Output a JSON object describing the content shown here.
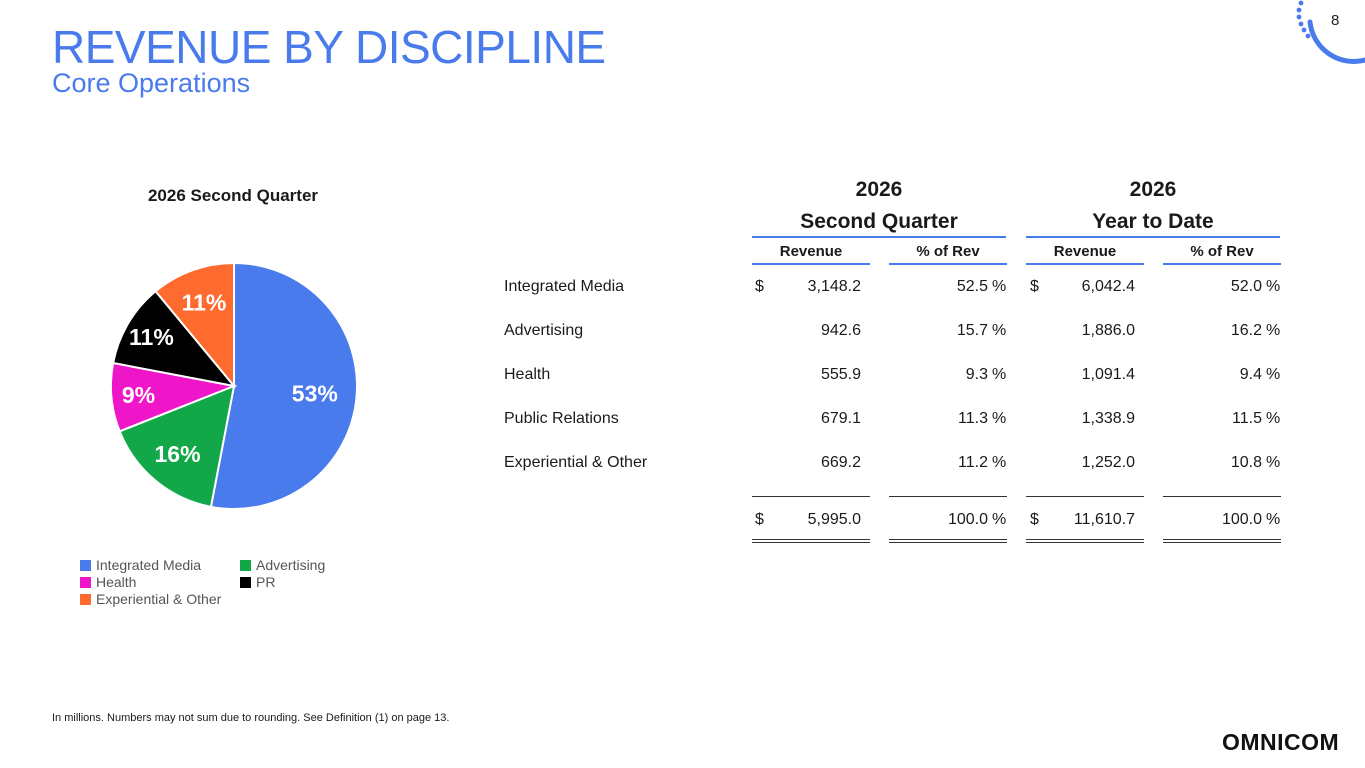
{
  "header": {
    "title": "REVENUE BY DISCIPLINE",
    "subtitle": "Core Operations",
    "page_number": "8"
  },
  "colors": {
    "accent": "#4a7bec",
    "integrated_media": "#4a7bec",
    "advertising": "#12a84a",
    "health": "#ef15c8",
    "pr": "#000000",
    "experiential": "#ff6a2e"
  },
  "chart_data": {
    "type": "pie",
    "title": "2026 Second Quarter",
    "slices": [
      {
        "label": "Integrated Media",
        "value": 53,
        "display": "53%",
        "color": "#4a7bec"
      },
      {
        "label": "Advertising",
        "value": 16,
        "display": "16%",
        "color": "#12a84a"
      },
      {
        "label": "Health",
        "value": 9,
        "display": "9%",
        "color": "#ef15c8"
      },
      {
        "label": "PR",
        "value": 11,
        "display": "11%",
        "color": "#000000"
      },
      {
        "label": "Experiential & Other",
        "value": 11,
        "display": "11%",
        "color": "#ff6a2e"
      }
    ],
    "legend": [
      "Integrated Media",
      "Advertising",
      "Health",
      "PR",
      "Experiential & Other"
    ],
    "legend_placement": "bottom"
  },
  "table": {
    "groups": [
      {
        "year": "2026",
        "period": "Second Quarter"
      },
      {
        "year": "2026",
        "period": "Year to Date"
      }
    ],
    "columns": [
      "Revenue",
      "% of Rev",
      "Revenue",
      "% of Rev"
    ],
    "rows": [
      {
        "label": "Integrated Media",
        "q_rev": "3,148.2",
        "q_pct": "52.5",
        "ytd_rev": "6,042.4",
        "ytd_pct": "52.0"
      },
      {
        "label": "Advertising",
        "q_rev": "942.6",
        "q_pct": "15.7",
        "ytd_rev": "1,886.0",
        "ytd_pct": "16.2"
      },
      {
        "label": "Health",
        "q_rev": "555.9",
        "q_pct": "9.3",
        "ytd_rev": "1,091.4",
        "ytd_pct": "9.4"
      },
      {
        "label": "Public Relations",
        "q_rev": "679.1",
        "q_pct": "11.3",
        "ytd_rev": "1,338.9",
        "ytd_pct": "11.5"
      },
      {
        "label": "Experiential & Other",
        "q_rev": "669.2",
        "q_pct": "11.2",
        "ytd_rev": "1,252.0",
        "ytd_pct": "10.8"
      }
    ],
    "total": {
      "q_rev": "5,995.0",
      "q_pct": "100.0",
      "ytd_rev": "11,610.7",
      "ytd_pct": "100.0"
    },
    "currency_symbol": "$",
    "percent_symbol": "%"
  },
  "footnote": "In millions. Numbers may not sum due to rounding.  See Definition (1) on page 13.",
  "logo": "OMNICOM"
}
